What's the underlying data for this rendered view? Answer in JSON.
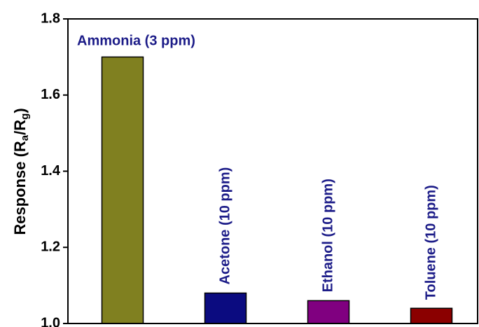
{
  "chart_data": {
    "type": "bar",
    "y_label": [
      "Response (R",
      "a",
      "/R",
      "g",
      ")"
    ],
    "categories": [
      "Ammonia (3 ppm)",
      "Acetone (10 ppm)",
      "Ethanol (10 ppm)",
      "Toluene (10 ppm)"
    ],
    "values": [
      1.7,
      1.08,
      1.06,
      1.04
    ],
    "colors": [
      "#808020",
      "#0b0b80",
      "#800080",
      "#8b0000"
    ],
    "label_color": "#1c1c88",
    "ylim": [
      1.0,
      1.8
    ],
    "yticks": [
      {
        "value": 1,
        "label": "1.0"
      },
      1.2,
      1.4,
      1.6,
      1.8
    ]
  }
}
